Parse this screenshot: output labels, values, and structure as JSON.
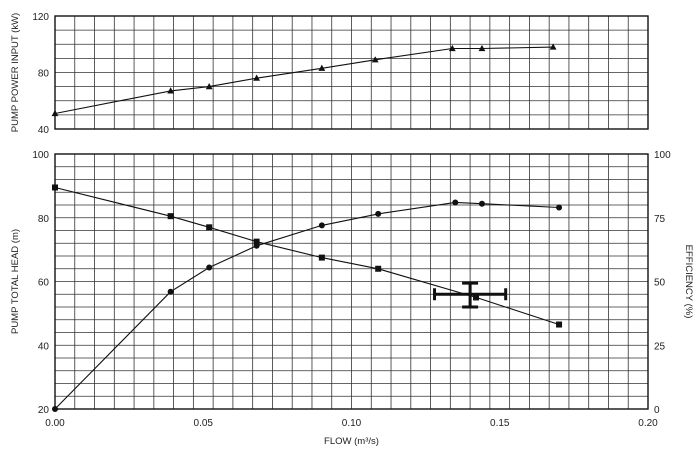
{
  "chart_data": [
    {
      "type": "line",
      "ylabel": "PUMP POWER INPUT (kW)",
      "xlim": [
        0,
        0.2
      ],
      "ylim": [
        40,
        120
      ],
      "y_ticks": [
        "40",
        "80",
        "120"
      ],
      "grid": true,
      "series": [
        {
          "marker": "triangle",
          "x": [
            0,
            0.039,
            0.052,
            0.068,
            0.09,
            0.108,
            0.134,
            0.144,
            0.168
          ],
          "y": [
            51,
            67,
            70,
            76,
            83,
            89,
            97,
            97,
            98
          ]
        }
      ]
    },
    {
      "type": "line",
      "xlabel": "FLOW (m³/s)",
      "ylabel": "PUMP TOTAL HEAD (m)",
      "y2label": "EFFICIENCY (%)",
      "xlim": [
        0,
        0.2
      ],
      "ylim": [
        20,
        100
      ],
      "y2lim": [
        0,
        100
      ],
      "x_ticks": [
        "0.00",
        "0.05",
        "0.10",
        "0.15",
        "0.20"
      ],
      "y_ticks": [
        "20",
        "40",
        "60",
        "80",
        "100"
      ],
      "y2_ticks": [
        "0",
        "25",
        "50",
        "75",
        "100"
      ],
      "grid": true,
      "series": [
        {
          "axis": "left",
          "marker": "square",
          "x": [
            0,
            0.039,
            0.052,
            0.068,
            0.09,
            0.109,
            0.142,
            0.17
          ],
          "y": [
            89.5,
            80.5,
            77,
            72.5,
            67.5,
            64,
            55,
            46.5
          ]
        },
        {
          "axis": "right",
          "marker": "circle",
          "x": [
            0,
            0.039,
            0.052,
            0.068,
            0.09,
            0.109,
            0.135,
            0.144,
            0.17
          ],
          "y": [
            0,
            46,
            55.5,
            64,
            72,
            76.5,
            81,
            80.5,
            79
          ]
        }
      ],
      "error_point": {
        "axis": "left",
        "x": 0.14,
        "y": 56,
        "x_range": [
          0.128,
          0.152
        ],
        "y_range": [
          52,
          59.5
        ]
      }
    }
  ]
}
